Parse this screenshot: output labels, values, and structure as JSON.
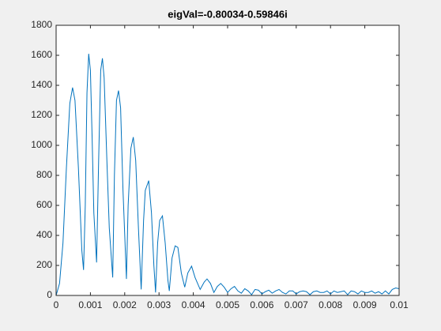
{
  "chart_data": {
    "type": "line",
    "title": "eigVal=-0.80034-0.59846i",
    "x": [
      0,
      0.0001,
      0.0002,
      0.0003,
      0.0004,
      0.00048,
      0.00055,
      0.00065,
      0.00075,
      0.0008,
      0.00085,
      0.0009,
      0.00095,
      0.001,
      0.00105,
      0.0011,
      0.00118,
      0.00124,
      0.0013,
      0.00135,
      0.0014,
      0.00148,
      0.00155,
      0.00165,
      0.0017,
      0.00176,
      0.00182,
      0.00188,
      0.00195,
      0.00205,
      0.0021,
      0.00218,
      0.00225,
      0.00232,
      0.0024,
      0.00248,
      0.00255,
      0.0026,
      0.0027,
      0.00278,
      0.00285,
      0.0029,
      0.00296,
      0.00302,
      0.0031,
      0.00318,
      0.00326,
      0.0033,
      0.00338,
      0.00347,
      0.00355,
      0.00365,
      0.00375,
      0.00384,
      0.00395,
      0.00405,
      0.0042,
      0.00432,
      0.0044,
      0.0045,
      0.0046,
      0.0047,
      0.0048,
      0.0049,
      0.005,
      0.0051,
      0.0052,
      0.0053,
      0.0054,
      0.0055,
      0.0056,
      0.0057,
      0.0058,
      0.0059,
      0.006,
      0.0061,
      0.0062,
      0.0063,
      0.0064,
      0.0065,
      0.0066,
      0.0067,
      0.0068,
      0.0069,
      0.007,
      0.0071,
      0.0072,
      0.0073,
      0.0074,
      0.0075,
      0.0076,
      0.0077,
      0.0078,
      0.0079,
      0.008,
      0.0081,
      0.0082,
      0.0083,
      0.0084,
      0.0085,
      0.0086,
      0.0087,
      0.0088,
      0.0089,
      0.009,
      0.0091,
      0.0092,
      0.0093,
      0.0094,
      0.0095,
      0.0096,
      0.0097,
      0.0098,
      0.0099,
      0.01
    ],
    "series": [
      {
        "color": "#0072bd",
        "values": [
          0,
          80,
          350,
          850,
          1280,
          1385,
          1300,
          850,
          300,
          170,
          600,
          1350,
          1610,
          1500,
          1050,
          550,
          220,
          900,
          1500,
          1580,
          1450,
          900,
          450,
          120,
          800,
          1300,
          1365,
          1250,
          700,
          110,
          600,
          980,
          1055,
          900,
          450,
          40,
          500,
          700,
          765,
          550,
          200,
          20,
          350,
          500,
          530,
          350,
          100,
          30,
          250,
          330,
          320,
          150,
          55,
          150,
          195,
          120,
          40,
          90,
          110,
          80,
          20,
          60,
          80,
          55,
          20,
          45,
          60,
          30,
          15,
          45,
          30,
          5,
          40,
          35,
          10,
          25,
          35,
          15,
          30,
          40,
          20,
          10,
          30,
          30,
          10,
          25,
          30,
          25,
          5,
          25,
          30,
          20,
          20,
          30,
          10,
          30,
          20,
          25,
          30,
          5,
          30,
          25,
          10,
          30,
          20,
          20,
          30,
          15,
          25,
          10,
          30,
          10,
          40,
          50,
          45
        ]
      }
    ],
    "xlim": [
      0,
      0.01
    ],
    "xticks": [
      0,
      0.001,
      0.002,
      0.003,
      0.004,
      0.005,
      0.006,
      0.007,
      0.008,
      0.009,
      0.01
    ],
    "ylim": [
      0,
      1800
    ],
    "yticks": [
      0,
      200,
      400,
      600,
      800,
      1000,
      1200,
      1400,
      1600,
      1800
    ]
  }
}
